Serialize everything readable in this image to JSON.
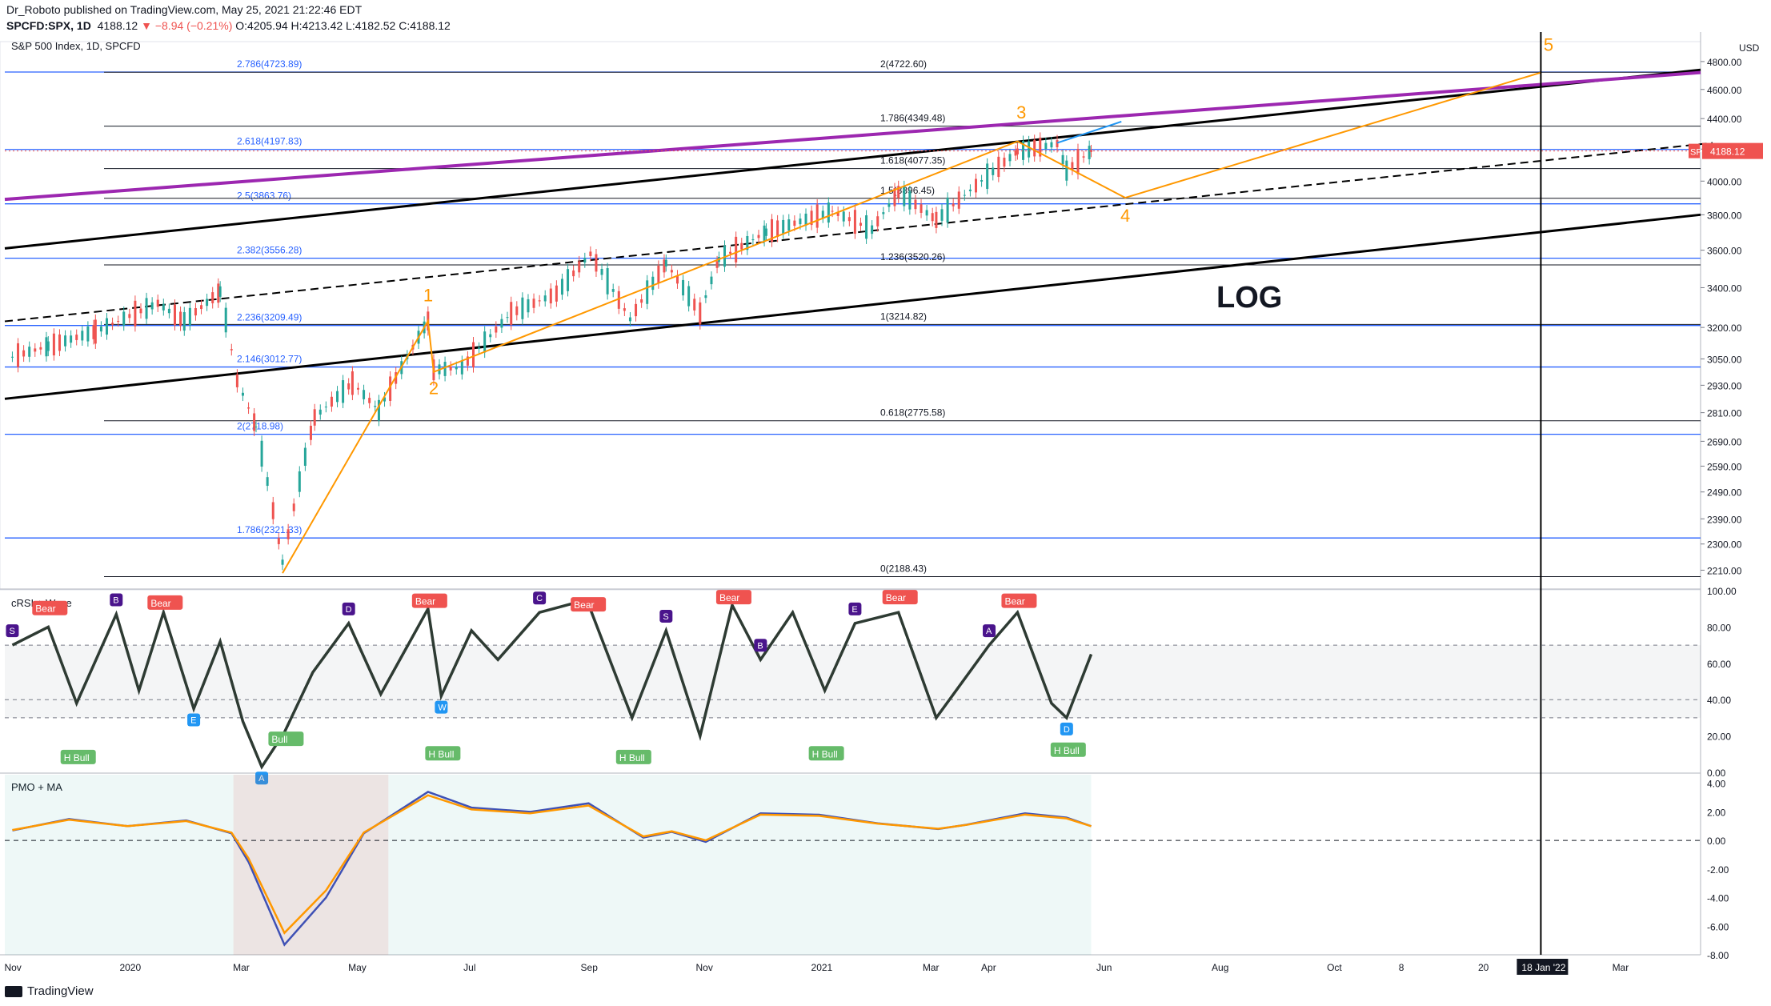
{
  "header": {
    "publisher": "Dr_Roboto published on TradingView.com, May 25, 2021 21:22:46 EDT",
    "symbol": "SPCFD:SPX, 1D",
    "last": "4188.12",
    "change": "▼ −8.94 (−0.21%)",
    "o": "O:4205.94",
    "h": "H:4213.42",
    "l": "L:4182.52",
    "c": "C:4188.12"
  },
  "footer": {
    "brand": "TradingView"
  },
  "colors": {
    "up": "#26a69a",
    "down": "#ef5350",
    "fib": "#2962ff",
    "purple": "#9c27b0",
    "orange": "#ff9800",
    "black": "#000000"
  },
  "chart_data": [
    {
      "type": "line",
      "title": "S&P 500 Index, 1D, SPCFD",
      "ylabel": "USD",
      "log_scale": true,
      "ylim": [
        2150,
        4900
      ],
      "y_ticks": [
        "4800.00",
        "4600.00",
        "4400.00",
        "4200.00",
        "4000.00",
        "3800.00",
        "3600.00",
        "3400.00",
        "3200.00",
        "3050.00",
        "2930.00",
        "2810.00",
        "2690.00",
        "2590.00",
        "2490.00",
        "2390.00",
        "2300.00",
        "2210.00"
      ],
      "x_ticks": [
        "Nov",
        "2020",
        "Mar",
        "May",
        "Jul",
        "Sep",
        "Nov",
        "2021",
        "Mar",
        "Apr",
        "Jun",
        "Aug",
        "Oct",
        "8",
        "20",
        "Mar"
      ],
      "x_highlight": "18 Jan '22",
      "price_label": {
        "name": "SPX",
        "value": "4188.12"
      },
      "wave_labels": [
        "1",
        "2",
        "3",
        "4",
        "5"
      ],
      "annotation": "LOG",
      "fib_levels_left": [
        {
          "label": "2.786(4723.89)",
          "v": 4723.89
        },
        {
          "label": "2.618(4197.83)",
          "v": 4197.83
        },
        {
          "label": "2.5(3863.76)",
          "v": 3863.76
        },
        {
          "label": "2.382(3556.28)",
          "v": 3556.28
        },
        {
          "label": "2.236(3209.49)",
          "v": 3209.49
        },
        {
          "label": "2.146(3012.77)",
          "v": 3012.77
        },
        {
          "label": "2(2718.98)",
          "v": 2718.98
        },
        {
          "label": "1.786(2321.33)",
          "v": 2321.33
        }
      ],
      "fib_levels_right": [
        {
          "label": "2(4722.60)",
          "v": 4722.6
        },
        {
          "label": "1.786(4349.48)",
          "v": 4349.48
        },
        {
          "label": "1.618(4077.35)",
          "v": 4077.35
        },
        {
          "label": "1.5(3896.45)",
          "v": 3896.45
        },
        {
          "label": "1.236(3520.26)",
          "v": 3520.26
        },
        {
          "label": "1(3214.82)",
          "v": 3214.82
        },
        {
          "label": "0.618(2775.58)",
          "v": 2775.58
        },
        {
          "label": "0(2188.43)",
          "v": 2188.43
        }
      ],
      "series": [
        {
          "values": [
            [
              "2019-11-01",
              3060
            ],
            [
              "2019-11-20",
              3110
            ],
            [
              "2019-12-15",
              3180
            ],
            [
              "2020-01-17",
              3320
            ],
            [
              "2020-01-31",
              3230
            ],
            [
              "2020-02-19",
              3380
            ],
            [
              "2020-02-28",
              2950
            ],
            [
              "2020-03-09",
              2750
            ],
            [
              "2020-03-23",
              2237
            ],
            [
              "2020-04-09",
              2790
            ],
            [
              "2020-04-29",
              2940
            ],
            [
              "2020-05-13",
              2820
            ],
            [
              "2020-06-08",
              3232
            ],
            [
              "2020-06-11",
              3000
            ],
            [
              "2020-06-26",
              3010
            ],
            [
              "2020-07-22",
              3270
            ],
            [
              "2020-08-15",
              3370
            ],
            [
              "2020-09-02",
              3580
            ],
            [
              "2020-09-23",
              3240
            ],
            [
              "2020-10-12",
              3530
            ],
            [
              "2020-10-30",
              3270
            ],
            [
              "2020-11-09",
              3550
            ],
            [
              "2020-12-04",
              3700
            ],
            [
              "2021-01-08",
              3820
            ],
            [
              "2021-01-29",
              3715
            ],
            [
              "2021-02-12",
              3935
            ],
            [
              "2021-03-04",
              3770
            ],
            [
              "2021-04-16",
              4185
            ],
            [
              "2021-05-07",
              4235
            ],
            [
              "2021-05-12",
              4065
            ],
            [
              "2021-05-25",
              4188
            ]
          ]
        }
      ]
    },
    {
      "type": "line",
      "title": "cRSI + Wave",
      "ylim": [
        0,
        100
      ],
      "y_ticks": [
        "100.00",
        "80.00",
        "60.00",
        "40.00",
        "20.00",
        "0.00"
      ],
      "signal_labels": [
        "Bear",
        "H Bull",
        "Bull",
        "S",
        "W",
        "A",
        "B",
        "C",
        "D",
        "E"
      ],
      "series": [
        {
          "values": [
            [
              "2019-11-01",
              70
            ],
            [
              "2019-11-20",
              80
            ],
            [
              "2019-12-05",
              38
            ],
            [
              "2019-12-26",
              87
            ],
            [
              "2020-01-07",
              45
            ],
            [
              "2020-01-20",
              88
            ],
            [
              "2020-02-05",
              35
            ],
            [
              "2020-02-19",
              72
            ],
            [
              "2020-03-02",
              28
            ],
            [
              "2020-03-12",
              3
            ],
            [
              "2020-03-24",
              22
            ],
            [
              "2020-04-08",
              55
            ],
            [
              "2020-04-27",
              82
            ],
            [
              "2020-05-14",
              43
            ],
            [
              "2020-06-08",
              90
            ],
            [
              "2020-06-15",
              42
            ],
            [
              "2020-07-01",
              78
            ],
            [
              "2020-07-15",
              62
            ],
            [
              "2020-08-06",
              88
            ],
            [
              "2020-08-31",
              95
            ],
            [
              "2020-09-24",
              30
            ],
            [
              "2020-10-12",
              78
            ],
            [
              "2020-10-30",
              20
            ],
            [
              "2020-11-16",
              92
            ],
            [
              "2020-12-01",
              62
            ],
            [
              "2020-12-18",
              88
            ],
            [
              "2021-01-04",
              45
            ],
            [
              "2021-01-20",
              82
            ],
            [
              "2021-02-12",
              88
            ],
            [
              "2021-03-04",
              30
            ],
            [
              "2021-04-01",
              70
            ],
            [
              "2021-04-16",
              88
            ],
            [
              "2021-05-04",
              38
            ],
            [
              "2021-05-12",
              30
            ],
            [
              "2021-05-25",
              65
            ]
          ]
        }
      ]
    },
    {
      "type": "area",
      "title": "PMO + MA",
      "ylim": [
        -8,
        4.6
      ],
      "y_ticks": [
        "4.00",
        "2.00",
        "0.00",
        "-2.00",
        "-4.00",
        "-6.00",
        "-8.00"
      ],
      "series": [
        {
          "values": [
            [
              "2019-11-01",
              0.7
            ],
            [
              "2019-12-01",
              1.5
            ],
            [
              "2020-01-01",
              1.0
            ],
            [
              "2020-02-01",
              1.4
            ],
            [
              "2020-02-25",
              0.5
            ],
            [
              "2020-03-05",
              -1.5
            ],
            [
              "2020-03-24",
              -7.3
            ],
            [
              "2020-04-15",
              -4
            ],
            [
              "2020-05-05",
              0.5
            ],
            [
              "2020-06-08",
              3.4
            ],
            [
              "2020-07-01",
              2.3
            ],
            [
              "2020-08-01",
              2.0
            ],
            [
              "2020-09-01",
              2.6
            ],
            [
              "2020-09-30",
              0.2
            ],
            [
              "2020-10-15",
              0.6
            ],
            [
              "2020-11-02",
              -0.1
            ],
            [
              "2020-12-01",
              1.9
            ],
            [
              "2021-01-01",
              1.8
            ],
            [
              "2021-02-01",
              1.2
            ],
            [
              "2021-03-05",
              0.8
            ],
            [
              "2021-03-20",
              1.1
            ],
            [
              "2021-04-20",
              1.9
            ],
            [
              "2021-05-12",
              1.6
            ],
            [
              "2021-05-25",
              1.0
            ]
          ]
        }
      ]
    }
  ]
}
